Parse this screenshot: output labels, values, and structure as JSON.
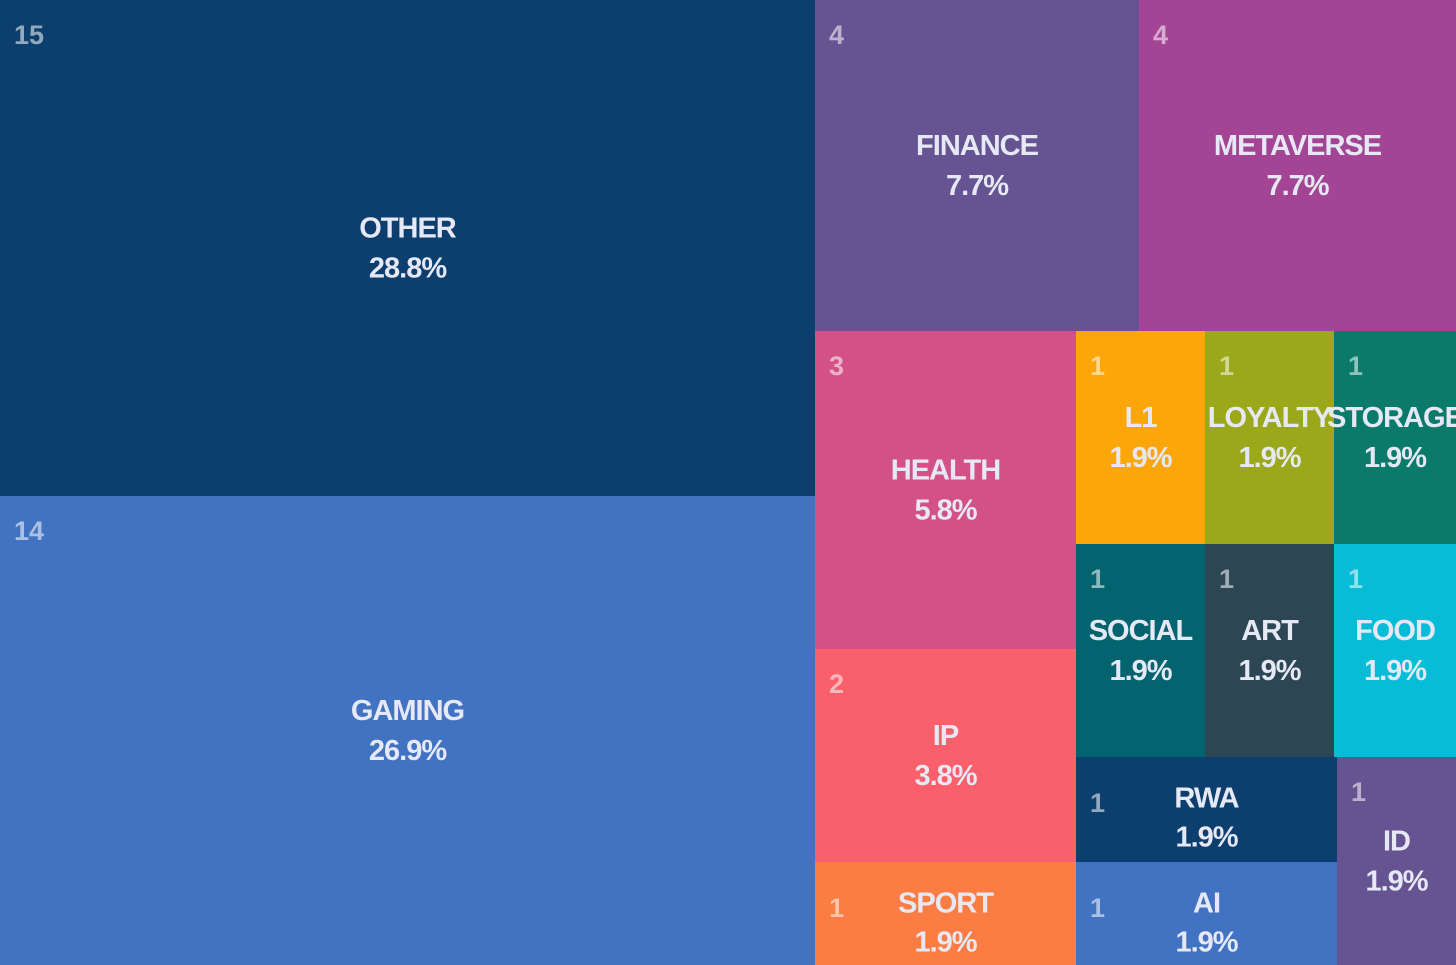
{
  "chart_data": {
    "type": "treemap",
    "categories": [
      "OTHER",
      "GAMING",
      "FINANCE",
      "METAVERSE",
      "HEALTH",
      "IP",
      "SPORT",
      "L1",
      "LOYALTY",
      "STORAGE",
      "SOCIAL",
      "ART",
      "FOOD",
      "RWA",
      "AI",
      "ID"
    ],
    "values": [
      15,
      14,
      4,
      4,
      3,
      2,
      1,
      1,
      1,
      1,
      1,
      1,
      1,
      1,
      1,
      1
    ],
    "shares": [
      28.8,
      26.9,
      7.7,
      7.7,
      5.8,
      3.8,
      1.9,
      1.9,
      1.9,
      1.9,
      1.9,
      1.9,
      1.9,
      1.9,
      1.9,
      1.9
    ],
    "share_labels": [
      "28.8%",
      "26.9%",
      "7.7%",
      "7.7%",
      "5.8%",
      "3.8%",
      "1.9%",
      "1.9%",
      "1.9%",
      "1.9%",
      "1.9%",
      "1.9%",
      "1.9%",
      "1.9%",
      "1.9%",
      "1.9%"
    ],
    "colors": [
      "#0d3f6e",
      "#4273c2",
      "#665391",
      "#a34594",
      "#d45188",
      "#fa5f6c",
      "#fc7d43",
      "#fca60a",
      "#9aa81a",
      "#0a7a6a",
      "#03636e",
      "#2d4654",
      "#07bcd6",
      "#0d3f6e",
      "#4273c2",
      "#665391"
    ]
  }
}
